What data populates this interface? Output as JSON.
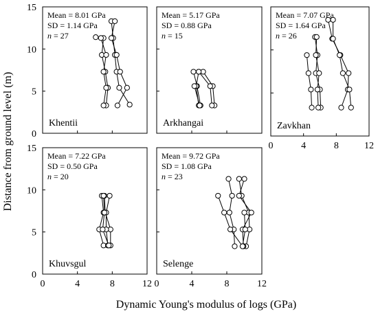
{
  "chart_data": {
    "type": "line",
    "ylabel": "Distance from ground level (m)",
    "xlabel": "Dynamic Young's modulus of logs (GPa)",
    "x_ticks": [
      "0",
      "4",
      "8",
      "12"
    ],
    "y_ticks": [
      "0",
      "5",
      "10",
      "15"
    ],
    "xlim": [
      0,
      12
    ],
    "ylim": [
      0,
      15
    ],
    "panels": [
      {
        "site": "Khentii",
        "mean": "Mean = 8.01 GPa",
        "sd": "SD = 1.14 GPa",
        "n_label": "n",
        "n_value": " = 27",
        "series": [
          {
            "points": [
              [
                7.9,
                13.3
              ],
              [
                8.1,
                11.3
              ],
              [
                8.3,
                9.3
              ],
              [
                8.5,
                7.3
              ],
              [
                8.8,
                5.4
              ],
              [
                10.0,
                3.4
              ]
            ]
          },
          {
            "points": [
              [
                8.3,
                13.3
              ],
              [
                7.9,
                11.3
              ],
              [
                8.5,
                9.3
              ],
              [
                8.9,
                7.3
              ],
              [
                9.7,
                5.4
              ],
              [
                8.6,
                3.3
              ]
            ]
          },
          {
            "points": [
              [
                6.1,
                11.4
              ],
              [
                7.0,
                11.3
              ],
              [
                6.8,
                9.3
              ],
              [
                7.2,
                7.3
              ],
              [
                7.5,
                5.4
              ],
              [
                7.3,
                3.3
              ]
            ]
          },
          {
            "points": [
              [
                6.7,
                11.3
              ],
              [
                7.3,
                9.3
              ],
              [
                7.0,
                7.3
              ],
              [
                7.3,
                5.4
              ],
              [
                7.0,
                3.3
              ]
            ]
          }
        ]
      },
      {
        "site": "Arkhangai",
        "mean": "Mean = 5.17 GPa",
        "sd": "SD = 0.88 GPa",
        "n_label": "n",
        "n_value": " = 15",
        "series": [
          {
            "points": [
              [
                4.2,
                7.3
              ],
              [
                4.6,
                5.6
              ],
              [
                5.0,
                3.3
              ]
            ]
          },
          {
            "points": [
              [
                4.8,
                7.3
              ],
              [
                4.5,
                5.6
              ],
              [
                4.8,
                3.3
              ]
            ]
          },
          {
            "points": [
              [
                5.3,
                7.3
              ],
              [
                6.4,
                5.6
              ],
              [
                6.6,
                3.3
              ]
            ]
          },
          {
            "points": [
              [
                4.8,
                7.3
              ],
              [
                6.1,
                5.6
              ],
              [
                6.3,
                3.3
              ]
            ]
          },
          {
            "points": [
              [
                4.3,
                5.6
              ],
              [
                4.9,
                3.3
              ]
            ]
          }
        ]
      },
      {
        "site": "Zavkhan",
        "mean": "Mean = 7.07 GPa",
        "sd": "SD = 1.64 GPa",
        "n_label": "n",
        "n_value": " = 26",
        "series": [
          {
            "points": [
              [
                7.0,
                13.5
              ],
              [
                7.5,
                11.3
              ],
              [
                8.5,
                9.4
              ],
              [
                9.5,
                7.3
              ],
              [
                9.4,
                5.4
              ],
              [
                8.6,
                3.3
              ]
            ]
          },
          {
            "points": [
              [
                7.6,
                13.5
              ],
              [
                7.6,
                11.3
              ],
              [
                8.4,
                9.4
              ],
              [
                8.8,
                7.3
              ],
              [
                9.6,
                5.4
              ],
              [
                9.8,
                3.3
              ]
            ]
          },
          {
            "points": [
              [
                5.4,
                11.5
              ],
              [
                5.7,
                9.4
              ],
              [
                5.5,
                7.3
              ],
              [
                6.0,
                5.4
              ],
              [
                6.1,
                3.3
              ]
            ]
          },
          {
            "points": [
              [
                5.6,
                11.5
              ],
              [
                5.5,
                9.4
              ],
              [
                5.9,
                7.3
              ],
              [
                5.7,
                5.4
              ],
              [
                5.8,
                3.3
              ]
            ]
          },
          {
            "points": [
              [
                4.4,
                9.4
              ],
              [
                4.6,
                7.3
              ],
              [
                4.9,
                5.4
              ],
              [
                5.0,
                3.3
              ]
            ]
          }
        ]
      },
      {
        "site": "Khuvsgul",
        "mean": "Mean = 7.22 GPa",
        "sd": "SD = 0.50 GPa",
        "n_label": "n",
        "n_value": " = 20",
        "series": [
          {
            "points": [
              [
                6.8,
                9.3
              ],
              [
                7.0,
                7.3
              ],
              [
                6.5,
                5.3
              ],
              [
                7.0,
                3.4
              ]
            ]
          },
          {
            "points": [
              [
                7.1,
                9.3
              ],
              [
                7.2,
                7.3
              ],
              [
                7.8,
                5.3
              ],
              [
                7.8,
                3.4
              ]
            ]
          },
          {
            "points": [
              [
                7.7,
                9.3
              ],
              [
                7.3,
                7.3
              ],
              [
                7.3,
                5.3
              ],
              [
                7.5,
                3.4
              ]
            ]
          },
          {
            "points": [
              [
                7.0,
                9.3
              ],
              [
                7.1,
                7.3
              ],
              [
                6.9,
                5.3
              ],
              [
                7.6,
                3.4
              ]
            ]
          }
        ]
      },
      {
        "site": "Selenge",
        "mean": "Mean = 9.72 GPa",
        "sd": "SD = 1.08 GPa",
        "n_label": "n",
        "n_value": " = 23",
        "series": [
          {
            "points": [
              [
                8.2,
                11.3
              ],
              [
                8.6,
                9.3
              ],
              [
                8.3,
                7.3
              ],
              [
                8.8,
                5.3
              ],
              [
                8.9,
                3.3
              ]
            ]
          },
          {
            "points": [
              [
                9.4,
                11.3
              ],
              [
                9.7,
                9.3
              ],
              [
                10.5,
                7.3
              ],
              [
                10.6,
                5.3
              ],
              [
                10.2,
                3.3
              ]
            ]
          },
          {
            "points": [
              [
                10.0,
                11.3
              ],
              [
                9.4,
                9.3
              ],
              [
                10.8,
                7.3
              ],
              [
                9.8,
                5.3
              ],
              [
                9.9,
                3.3
              ]
            ]
          },
          {
            "points": [
              [
                7.0,
                9.3
              ],
              [
                7.7,
                7.3
              ],
              [
                8.4,
                5.3
              ],
              [
                9.8,
                3.3
              ]
            ]
          },
          {
            "points": [
              [
                10.0,
                7.3
              ],
              [
                10.1,
                5.3
              ],
              [
                9.8,
                3.3
              ]
            ]
          }
        ]
      }
    ]
  }
}
